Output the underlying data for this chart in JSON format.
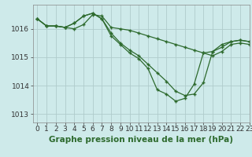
{
  "title": "Graphe pression niveau de la mer (hPa)",
  "bg_color": "#ceeaea",
  "grid_color": "#b0cccc",
  "line_color": "#2d6a2d",
  "xlim": [
    -0.5,
    23
  ],
  "ylim": [
    1012.7,
    1016.85
  ],
  "yticks": [
    1013,
    1014,
    1015,
    1016
  ],
  "xticks": [
    0,
    1,
    2,
    3,
    4,
    5,
    6,
    7,
    8,
    9,
    10,
    11,
    12,
    13,
    14,
    15,
    16,
    17,
    18,
    19,
    20,
    21,
    22,
    23
  ],
  "series1_x": [
    0,
    1,
    2,
    3,
    4,
    5,
    6,
    7,
    8,
    9,
    10,
    11,
    12,
    13,
    14,
    15,
    16,
    17,
    18,
    19,
    20,
    21,
    22,
    23
  ],
  "series1_y": [
    1016.35,
    1016.1,
    1016.1,
    1016.05,
    1016.0,
    1016.15,
    1016.5,
    1016.45,
    1016.05,
    1016.0,
    1015.95,
    1015.85,
    1015.75,
    1015.65,
    1015.55,
    1015.45,
    1015.35,
    1015.25,
    1015.15,
    1015.05,
    1015.2,
    1015.45,
    1015.5,
    1015.45
  ],
  "series2_x": [
    0,
    1,
    2,
    3,
    4,
    5,
    6,
    7,
    8,
    9,
    10,
    11,
    12,
    13,
    14,
    15,
    16,
    17,
    18,
    19,
    20,
    21,
    22,
    23
  ],
  "series2_y": [
    1016.35,
    1016.1,
    1016.1,
    1016.05,
    1016.2,
    1016.45,
    1016.55,
    1016.35,
    1015.85,
    1015.5,
    1015.25,
    1015.05,
    1014.75,
    1014.45,
    1014.15,
    1013.8,
    1013.65,
    1013.7,
    1014.1,
    1015.2,
    1015.35,
    1015.55,
    1015.6,
    1015.55
  ],
  "series3_x": [
    0,
    1,
    2,
    3,
    4,
    5,
    6,
    7,
    8,
    9,
    10,
    11,
    12,
    13,
    14,
    15,
    16,
    17,
    18,
    19,
    20,
    21,
    22,
    23
  ],
  "series3_y": [
    1016.35,
    1016.1,
    1016.1,
    1016.05,
    1016.2,
    1016.45,
    1016.55,
    1016.35,
    1015.75,
    1015.45,
    1015.15,
    1014.95,
    1014.6,
    1013.85,
    1013.7,
    1013.45,
    1013.55,
    1014.05,
    1015.15,
    1015.2,
    1015.45,
    1015.55,
    1015.6,
    1015.55
  ],
  "tick_fontsize": 6.5,
  "title_fontsize": 7.5,
  "marker_size": 3.5,
  "line_width": 0.9
}
